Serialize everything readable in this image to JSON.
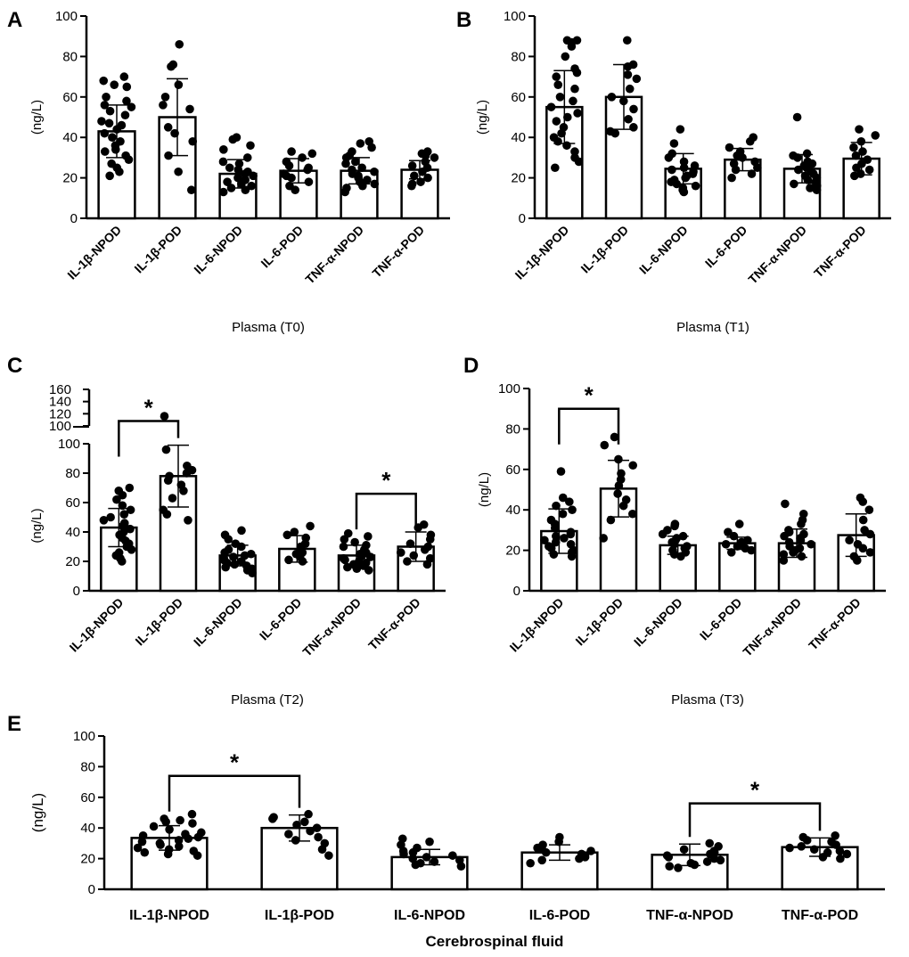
{
  "figure": {
    "categories": [
      "IL-1β-NPOD",
      "IL-1β-POD",
      "IL-6-NPOD",
      "IL-6-POD",
      "TNF-α-NPOD",
      "TNF-α-POD"
    ],
    "ylabel": "(ng/L)"
  },
  "chart_data": [
    {
      "panel": "A",
      "type": "bar",
      "title": "Plasma (T0)",
      "xlabel": "Plasma (T0)",
      "ylabel": "(ng/L)",
      "ylim": [
        0,
        100
      ],
      "yticks": [
        0,
        20,
        40,
        60,
        80,
        100
      ],
      "categories": [
        "IL-1β-NPOD",
        "IL-1β-POD",
        "IL-6-NPOD",
        "IL-6-POD",
        "TNF-α-NPOD",
        "TNF-α-POD"
      ],
      "values": [
        43,
        50,
        22,
        23.5,
        23.5,
        24
      ],
      "sd": [
        13,
        19,
        7,
        6,
        6.5,
        4.5
      ],
      "points": [
        [
          70,
          68,
          66,
          65,
          60,
          58,
          56,
          55,
          53,
          51,
          48,
          47,
          46,
          44,
          42,
          40,
          38,
          36,
          34,
          33,
          31,
          29,
          27,
          25,
          23,
          21
        ],
        [
          86,
          76,
          75,
          66,
          60,
          56,
          54,
          45,
          42,
          38,
          31,
          23,
          14
        ],
        [
          40,
          39,
          36,
          34,
          30,
          28,
          27,
          25,
          24,
          23,
          22,
          21,
          20,
          19,
          18,
          17,
          16,
          15,
          14,
          13
        ],
        [
          33,
          32,
          30,
          28,
          26,
          25,
          24,
          22,
          21,
          20,
          18,
          16,
          14
        ],
        [
          38,
          37,
          35,
          33,
          31,
          30,
          28,
          27,
          25,
          24,
          23,
          22,
          21,
          20,
          19,
          18,
          17,
          16,
          15,
          13
        ],
        [
          33,
          32,
          31,
          30,
          28,
          26,
          25,
          23,
          21,
          20,
          18,
          17,
          16
        ]
      ],
      "significance": []
    },
    {
      "panel": "B",
      "type": "bar",
      "title": "Plasma (T1)",
      "xlabel": "Plasma (T1)",
      "ylabel": "(ng/L)",
      "ylim": [
        0,
        100
      ],
      "yticks": [
        0,
        20,
        40,
        60,
        80,
        100
      ],
      "categories": [
        "IL-1β-NPOD",
        "IL-1β-POD",
        "IL-6-NPOD",
        "IL-6-POD",
        "TNF-α-NPOD",
        "TNF-α-POD"
      ],
      "values": [
        55,
        60,
        24.5,
        29,
        24.5,
        29.5
      ],
      "sd": [
        18,
        16,
        7.5,
        5.5,
        7,
        8
      ],
      "points": [
        [
          88,
          88,
          87,
          85,
          80,
          74,
          72,
          70,
          66,
          64,
          60,
          58,
          55,
          52,
          50,
          48,
          45,
          42,
          40,
          38,
          36,
          33,
          30,
          28,
          25
        ],
        [
          88,
          76,
          75,
          71,
          69,
          64,
          60,
          58,
          54,
          49,
          45,
          43,
          42
        ],
        [
          44,
          37,
          32,
          30,
          28,
          26,
          25,
          24,
          23,
          22,
          21,
          20,
          19,
          18,
          17,
          16,
          15,
          14,
          13
        ],
        [
          40,
          38,
          35,
          33,
          31,
          30,
          28,
          27,
          25,
          24,
          22,
          20
        ],
        [
          50,
          32,
          31,
          30,
          28,
          27,
          26,
          25,
          24,
          23,
          22,
          21,
          20,
          19,
          18,
          17,
          16,
          15,
          14
        ],
        [
          44,
          41,
          38,
          35,
          33,
          31,
          29,
          27,
          25,
          24,
          22,
          21
        ]
      ],
      "significance": []
    },
    {
      "panel": "C",
      "type": "bar",
      "title": "Plasma (T2)",
      "xlabel": "Plasma (T2)",
      "ylabel": "(ng/L)",
      "ylim": [
        0,
        160
      ],
      "axis_break": [
        100,
        100
      ],
      "yticks": [
        0,
        20,
        40,
        60,
        80,
        100,
        120,
        140,
        160
      ],
      "categories": [
        "IL-1β-NPOD",
        "IL-1β-POD",
        "IL-6-NPOD",
        "IL-6-POD",
        "TNF-α-NPOD",
        "TNF-α-POD"
      ],
      "values": [
        43,
        78,
        24,
        28.5,
        24,
        30
      ],
      "sd": [
        13,
        21,
        7,
        9,
        7,
        10
      ],
      "points": [
        [
          70,
          68,
          65,
          62,
          58,
          55,
          52,
          50,
          48,
          46,
          44,
          42,
          40,
          38,
          36,
          34,
          32,
          30,
          28,
          26,
          24,
          22,
          20
        ],
        [
          116,
          96,
          85,
          82,
          80,
          78,
          75,
          72,
          68,
          63,
          55,
          52,
          48
        ],
        [
          41,
          38,
          35,
          32,
          30,
          28,
          26,
          25,
          24,
          23,
          22,
          21,
          20,
          19,
          18,
          17,
          16,
          15,
          14,
          12
        ],
        [
          44,
          40,
          38,
          36,
          32,
          30,
          28,
          26,
          25,
          23,
          21,
          20
        ],
        [
          39,
          37,
          35,
          33,
          31,
          30,
          28,
          26,
          25,
          24,
          23,
          22,
          21,
          20,
          19,
          18,
          17,
          16,
          15,
          14
        ],
        [
          45,
          43,
          38,
          35,
          32,
          30,
          28,
          26,
          24,
          22,
          20,
          18
        ]
      ],
      "significance": [
        {
          "from": 0,
          "to": 1,
          "level": 108,
          "label": "*"
        },
        {
          "from": 4,
          "to": 5,
          "level": 66,
          "label": "*"
        }
      ]
    },
    {
      "panel": "D",
      "type": "bar",
      "title": "Plasma (T3)",
      "xlabel": "Plasma (T3)",
      "ylabel": "(ng/L)",
      "ylim": [
        0,
        100
      ],
      "yticks": [
        0,
        20,
        40,
        60,
        80,
        100
      ],
      "categories": [
        "IL-1β-NPOD",
        "IL-1β-POD",
        "IL-6-NPOD",
        "IL-6-POD",
        "TNF-α-NPOD",
        "TNF-α-POD"
      ],
      "values": [
        29.5,
        50.5,
        22.5,
        23.5,
        23.5,
        27.5
      ],
      "sd": [
        11,
        14,
        4.5,
        3,
        7,
        10.5
      ],
      "points": [
        [
          59,
          46,
          44,
          42,
          40,
          38,
          35,
          33,
          31,
          29,
          28,
          27,
          26,
          25,
          24,
          23,
          22,
          21,
          20,
          19,
          18,
          17
        ],
        [
          76,
          72,
          65,
          62,
          58,
          55,
          52,
          48,
          45,
          42,
          38,
          35,
          26
        ],
        [
          33,
          32,
          30,
          28,
          27,
          26,
          25,
          24,
          23,
          22,
          21,
          20,
          19,
          18,
          17
        ],
        [
          33,
          29,
          27,
          25,
          24,
          23,
          22,
          21,
          20,
          19
        ],
        [
          43,
          38,
          35,
          33,
          30,
          29,
          28,
          27,
          26,
          25,
          24,
          23,
          22,
          21,
          20,
          19,
          18,
          17,
          15
        ],
        [
          46,
          44,
          40,
          35,
          30,
          28,
          25,
          23,
          21,
          19,
          17,
          15
        ]
      ],
      "significance": [
        {
          "from": 0,
          "to": 1,
          "level": 90,
          "label": "*"
        }
      ]
    },
    {
      "panel": "E",
      "type": "bar",
      "title": "Cerebrospinal fluid",
      "xlabel": "Cerebrospinal fluid",
      "ylabel": "(ng/L)",
      "ylim": [
        0,
        100
      ],
      "yticks": [
        0,
        20,
        40,
        60,
        80,
        100
      ],
      "categories": [
        "IL-1β-NPOD",
        "IL-1β-POD",
        "IL-6-NPOD",
        "IL-6-POD",
        "TNF-α-NPOD",
        "TNF-α-POD"
      ],
      "values": [
        33.5,
        40,
        21,
        24,
        22.5,
        27.5
      ],
      "sd": [
        8,
        8.5,
        5,
        5,
        7,
        6
      ],
      "points": [
        [
          49,
          46,
          45,
          44,
          43,
          41,
          39,
          37,
          36,
          35,
          34,
          33,
          32,
          31,
          30,
          29,
          28,
          27,
          26,
          25,
          24,
          23,
          22
        ],
        [
          49,
          47,
          46,
          44,
          42,
          40,
          38,
          36,
          34,
          32,
          30,
          26,
          22
        ],
        [
          33,
          31,
          29,
          27,
          25,
          24,
          23,
          22,
          21,
          20,
          19,
          18,
          17,
          16,
          15
        ],
        [
          34,
          31,
          29,
          27,
          26,
          25,
          24,
          23,
          22,
          21,
          20,
          19,
          17
        ],
        [
          30,
          28,
          26,
          25,
          24,
          23,
          22,
          21,
          20,
          19,
          18,
          17,
          16,
          15,
          14
        ],
        [
          35,
          34,
          32,
          31,
          29,
          28,
          27,
          26,
          25,
          24,
          23,
          21,
          20
        ]
      ],
      "significance": [
        {
          "from": 0,
          "to": 1,
          "level": 74,
          "label": "*"
        },
        {
          "from": 4,
          "to": 5,
          "level": 56,
          "label": "*"
        }
      ]
    }
  ]
}
